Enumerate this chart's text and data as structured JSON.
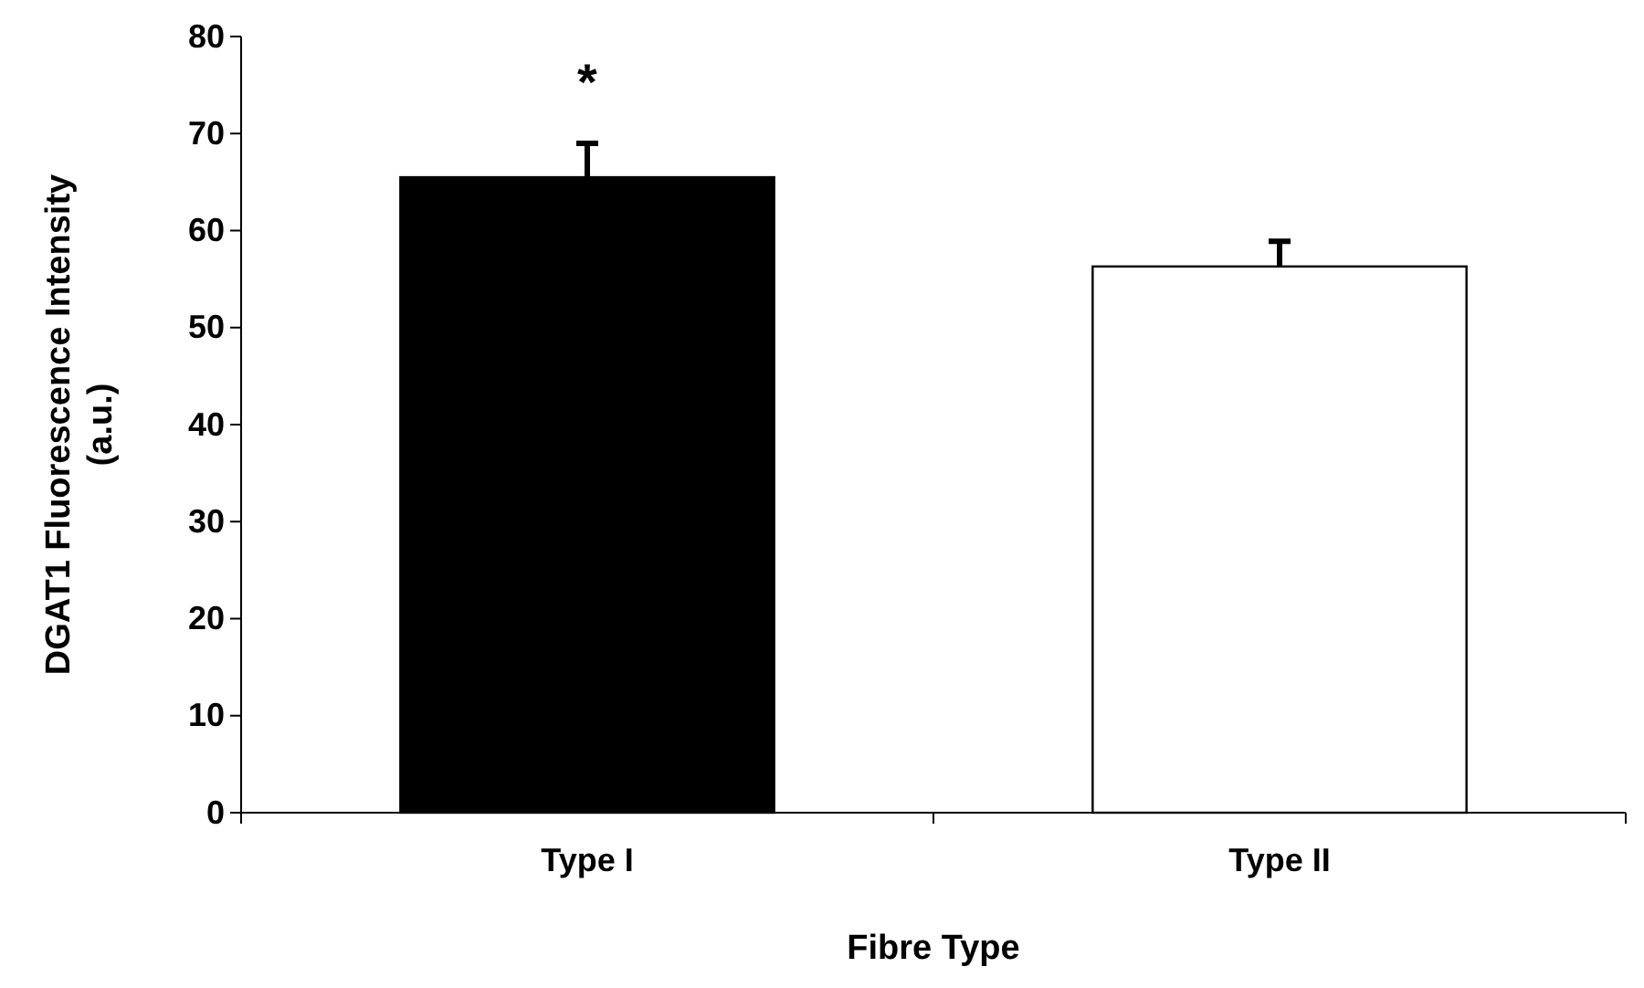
{
  "chart_data": {
    "type": "bar",
    "xlabel": "Fibre Type",
    "ylabel": "DGAT1 Fluorescence Intensity (a.u.)",
    "categories": [
      "Type I",
      "Type II"
    ],
    "values": [
      65.5,
      56.3
    ],
    "colors": [
      "#000000",
      "#ffffff"
    ],
    "errors": [
      3.5,
      2.6
    ],
    "ylim": [
      0,
      80
    ],
    "yticks": [
      0,
      10,
      20,
      30,
      40,
      50,
      60,
      70,
      80
    ],
    "grid": false,
    "annotations": [
      "*"
    ]
  }
}
